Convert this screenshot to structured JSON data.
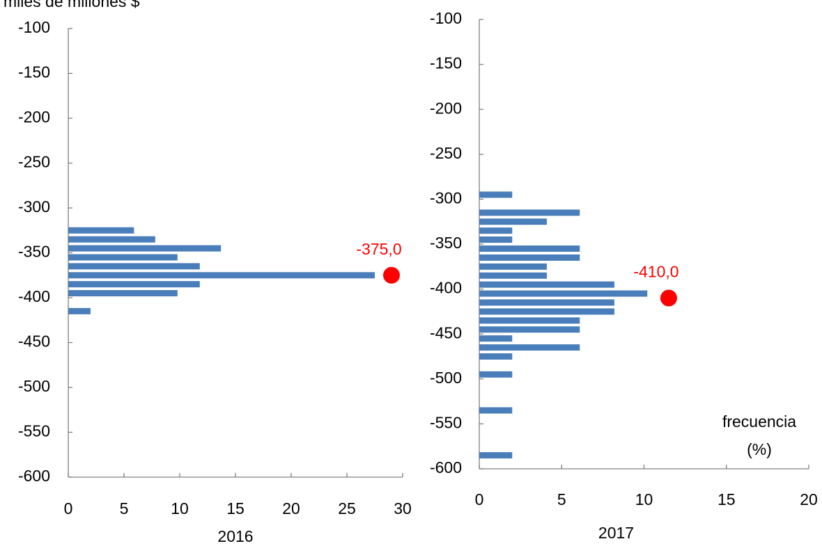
{
  "chart_data": [
    {
      "type": "histogram",
      "orientation": "horizontal",
      "y_label": "miles de millones $",
      "period": "2016",
      "bins": [
        -320,
        -330,
        -340,
        -350,
        -360,
        -370,
        -380,
        -390,
        -400,
        -410,
        -420
      ],
      "values": [
        5.9,
        7.8,
        13.7,
        9.8,
        11.8,
        27.5,
        11.8,
        9.8,
        0,
        2.0
      ],
      "color": "#4a7ebb",
      "marker": {
        "x": 29,
        "y": -375,
        "label": "-375,0",
        "color": "#ff0000"
      },
      "xlim": [
        0,
        30
      ],
      "xticks": [
        0,
        5,
        10,
        15,
        20,
        25,
        30
      ],
      "ylim": [
        -100,
        -600
      ],
      "yticks": [
        -100,
        -150,
        -200,
        -250,
        -300,
        -350,
        -400,
        -450,
        -500,
        -550,
        -600
      ]
    },
    {
      "type": "histogram",
      "orientation": "horizontal",
      "period": "2017",
      "x_label": [
        "frecuencia",
        "(%)"
      ],
      "bins": [
        -290,
        -300,
        -310,
        -320,
        -330,
        -340,
        -350,
        -360,
        -370,
        -380,
        -390,
        -400,
        -410,
        -420,
        -430,
        -440,
        -450,
        -460,
        -470,
        -480,
        -490,
        -500,
        -510,
        -520,
        -530,
        -540,
        -550,
        -560,
        -570,
        -580,
        -590
      ],
      "values": [
        2.0,
        0,
        6.1,
        4.1,
        2.0,
        2.0,
        6.1,
        6.1,
        4.1,
        4.1,
        8.2,
        10.2,
        8.2,
        8.2,
        6.1,
        6.1,
        2.0,
        6.1,
        2.0,
        0,
        2.0,
        0,
        0,
        0,
        2.0,
        0,
        0,
        0,
        0,
        2.0
      ],
      "color": "#4a7ebb",
      "marker": {
        "x": 11.5,
        "y": -410,
        "label": "-410,0",
        "color": "#ff0000"
      },
      "xlim": [
        0,
        20
      ],
      "xticks": [
        0,
        5,
        10,
        15,
        20
      ],
      "ylim": [
        -100,
        -600
      ],
      "yticks": [
        -100,
        -150,
        -200,
        -250,
        -300,
        -350,
        -400,
        -450,
        -500,
        -550,
        -600
      ]
    }
  ]
}
